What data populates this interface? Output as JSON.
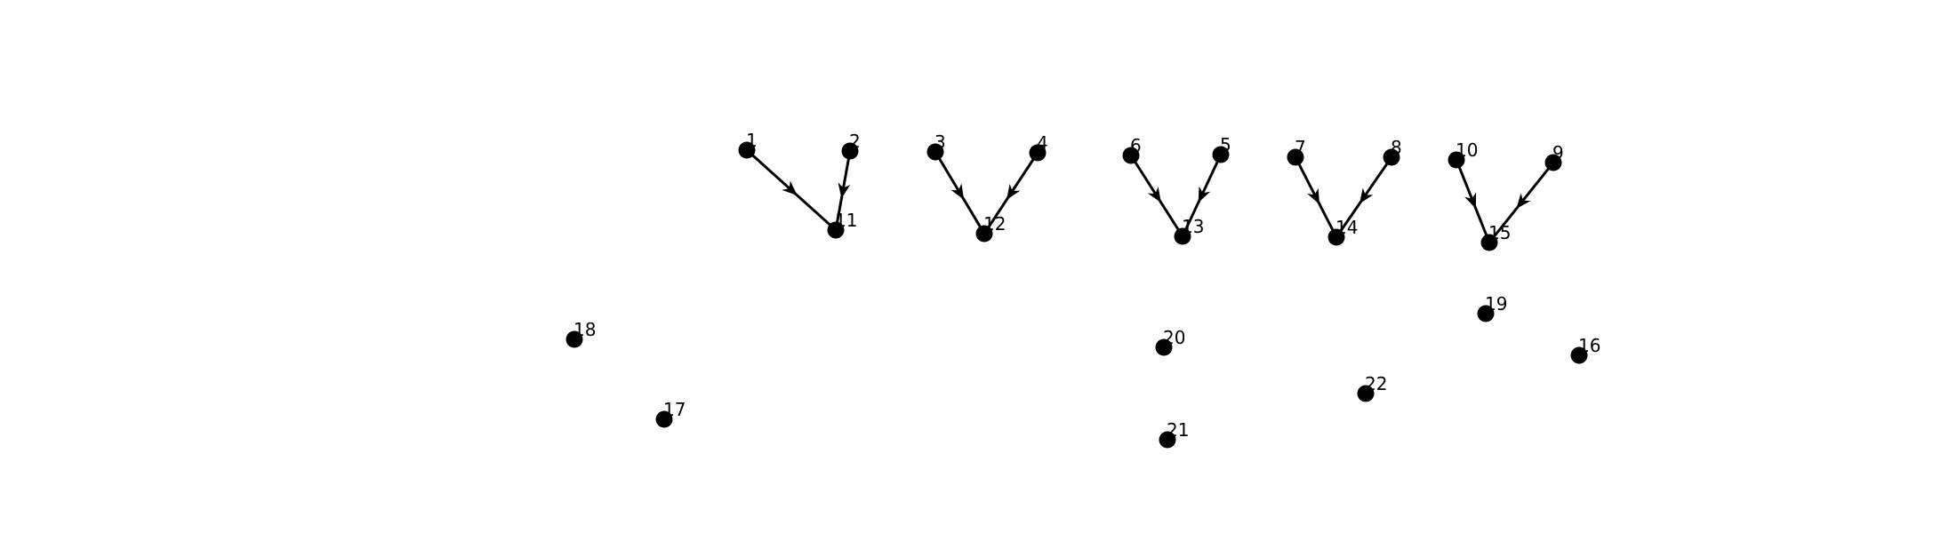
{
  "colors": {
    "background": "#ffffff",
    "node": "#000000",
    "edge": "#000000"
  },
  "nodes": [
    {
      "id": "1",
      "label": "1"
    },
    {
      "id": "2",
      "label": "2"
    },
    {
      "id": "3",
      "label": "3"
    },
    {
      "id": "4",
      "label": "4"
    },
    {
      "id": "5",
      "label": "5"
    },
    {
      "id": "6",
      "label": "6"
    },
    {
      "id": "7",
      "label": "7"
    },
    {
      "id": "8",
      "label": "8"
    },
    {
      "id": "9",
      "label": "9"
    },
    {
      "id": "10",
      "label": "10"
    },
    {
      "id": "11",
      "label": "11"
    },
    {
      "id": "12",
      "label": "12"
    },
    {
      "id": "13",
      "label": "13"
    },
    {
      "id": "14",
      "label": "14"
    },
    {
      "id": "15",
      "label": "15"
    },
    {
      "id": "16",
      "label": "16"
    },
    {
      "id": "17",
      "label": "17"
    },
    {
      "id": "18",
      "label": "18"
    },
    {
      "id": "19",
      "label": "19"
    },
    {
      "id": "20",
      "label": "20"
    },
    {
      "id": "21",
      "label": "21"
    },
    {
      "id": "22",
      "label": "22"
    }
  ],
  "edges": [
    {
      "from": "1",
      "to": "11"
    },
    {
      "from": "2",
      "to": "11"
    },
    {
      "from": "3",
      "to": "12"
    },
    {
      "from": "4",
      "to": "12"
    },
    {
      "from": "6",
      "to": "13"
    },
    {
      "from": "5",
      "to": "13"
    },
    {
      "from": "7",
      "to": "14"
    },
    {
      "from": "8",
      "to": "14"
    },
    {
      "from": "10",
      "to": "15"
    },
    {
      "from": "9",
      "to": "15"
    }
  ]
}
